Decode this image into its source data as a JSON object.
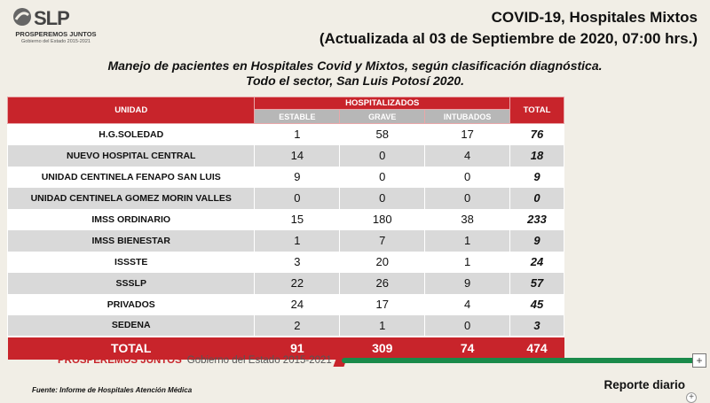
{
  "logo": {
    "text": "SLP",
    "line1": "PROSPEREMOS JUNTOS",
    "line2": "Gobierno del Estado 2015-2021"
  },
  "header": {
    "title": "COVID-19, Hospitales Mixtos",
    "updated": "(Actualizada al 03 de Septiembre de 2020, 07:00 hrs.)",
    "subtitle1": "Manejo de pacientes en Hospitales Covid y Mixtos, según clasificación diagnóstica.",
    "subtitle2": "Todo el sector, San Luis Potosí 2020."
  },
  "table": {
    "col_unidad": "UNIDAD",
    "col_group": "HOSPITALIZADOS",
    "col_total": "TOTAL",
    "sub_cols": [
      "ESTABLE",
      "GRAVE",
      "INTUBADOS"
    ],
    "rows": [
      [
        "H.G.SOLEDAD",
        "1",
        "58",
        "17",
        "76"
      ],
      [
        "NUEVO HOSPITAL CENTRAL",
        "14",
        "0",
        "4",
        "18"
      ],
      [
        "UNIDAD CENTINELA FENAPO SAN LUIS",
        "9",
        "0",
        "0",
        "9"
      ],
      [
        "UNIDAD CENTINELA GOMEZ MORIN VALLES",
        "0",
        "0",
        "0",
        "0"
      ],
      [
        "IMSS ORDINARIO",
        "15",
        "180",
        "38",
        "233"
      ],
      [
        "IMSS BIENESTAR",
        "1",
        "7",
        "1",
        "9"
      ],
      [
        "ISSSTE",
        "3",
        "20",
        "1",
        "24"
      ],
      [
        "SSSLP",
        "22",
        "26",
        "9",
        "57"
      ],
      [
        "PRIVADOS",
        "24",
        "17",
        "4",
        "45"
      ],
      [
        "SEDENA",
        "2",
        "1",
        "0",
        "3"
      ]
    ],
    "total_row": [
      "TOTAL",
      "91",
      "309",
      "74",
      "474"
    ]
  },
  "footer": {
    "prosperemos": "PROSPEREMOS JUNTOS",
    "gobierno": "Gobierno del Estado 2015-2021",
    "source": "Fuente: Informe de Hospitales Atención Médica",
    "reporte": "Reporte diario",
    "zoom_plus": "+",
    "zoom_small": "+"
  },
  "colors": {
    "brand_red": "#c8242b",
    "header_gray": "#b7b7b7",
    "brand_green": "#1a8a4a"
  }
}
